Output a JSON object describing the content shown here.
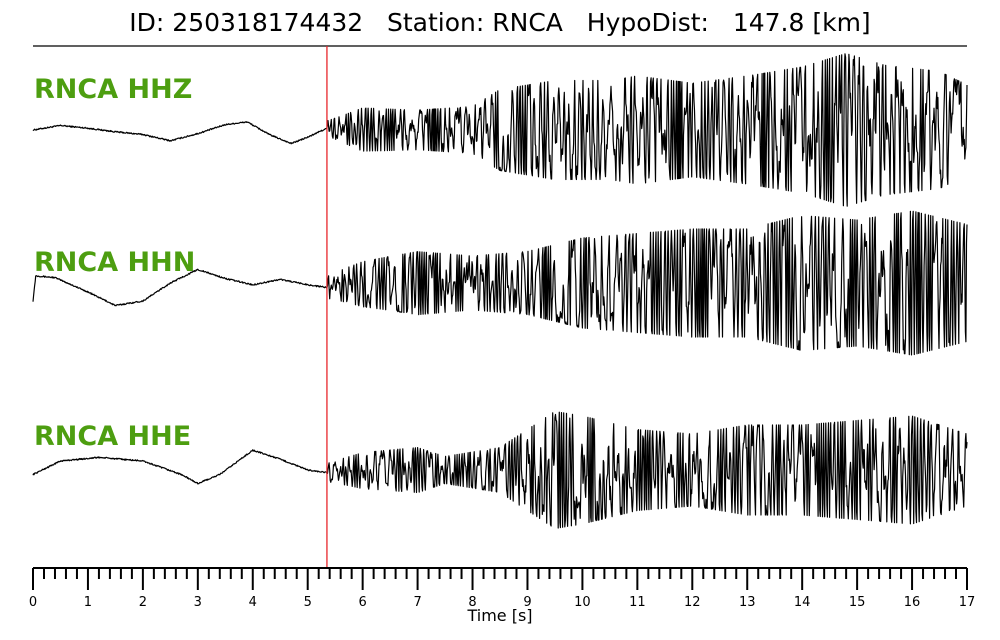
{
  "title": {
    "id_label": "ID:",
    "id_value": "250318174432",
    "station_label": "Station:",
    "station_value": "RNCA",
    "dist_label": "HypoDist:",
    "dist_value": "147.8 [km]"
  },
  "chart_data": {
    "type": "line",
    "xlabel": "Time [s]",
    "xlim": [
      0,
      17
    ],
    "xticks": [
      0,
      1,
      2,
      3,
      4,
      5,
      6,
      7,
      8,
      9,
      10,
      11,
      12,
      13,
      14,
      15,
      16,
      17
    ],
    "minor_tick_step": 0.2,
    "pick_time": 5.35,
    "pick_color": "#e8262b",
    "label_color": "#4d9e10",
    "trace_color": "#000000",
    "traces": [
      {
        "name": "RNCA HHZ",
        "end_time": 17,
        "pre_event": [
          [
            0,
            0
          ],
          [
            0.5,
            0.5
          ],
          [
            1.0,
            0.2
          ],
          [
            1.5,
            -0.2
          ],
          [
            2.0,
            -0.5
          ],
          [
            2.5,
            -1.2
          ],
          [
            3.0,
            -0.4
          ],
          [
            3.5,
            0.6
          ],
          [
            3.9,
            0.9
          ],
          [
            4.3,
            -0.5
          ],
          [
            4.7,
            -1.5
          ],
          [
            5.0,
            -0.8
          ],
          [
            5.35,
            0.2
          ]
        ],
        "coda_envelope": [
          [
            5.35,
            0.8
          ],
          [
            6.0,
            2.4
          ],
          [
            7.0,
            2.2
          ],
          [
            8.0,
            2.6
          ],
          [
            8.5,
            4.5
          ],
          [
            9.5,
            5.5
          ],
          [
            10.5,
            5.5
          ],
          [
            11.0,
            6.0
          ],
          [
            12.0,
            5.2
          ],
          [
            13.0,
            6.0
          ],
          [
            14.0,
            7.0
          ],
          [
            14.8,
            8.5
          ],
          [
            15.5,
            7.2
          ],
          [
            16.5,
            6.5
          ],
          [
            17.0,
            5.0
          ]
        ]
      },
      {
        "name": "RNCA HHN",
        "end_time": 17,
        "pre_event": [
          [
            0,
            -2.0
          ],
          [
            0.05,
            0.8
          ],
          [
            0.4,
            0.6
          ],
          [
            1.0,
            -1.0
          ],
          [
            1.5,
            -2.5
          ],
          [
            2.0,
            -2.0
          ],
          [
            2.5,
            0
          ],
          [
            3.0,
            1.5
          ],
          [
            3.5,
            0.5
          ],
          [
            4.0,
            -0.2
          ],
          [
            4.5,
            0.4
          ],
          [
            5.0,
            -0.2
          ],
          [
            5.35,
            -0.5
          ]
        ],
        "coda_envelope": [
          [
            5.35,
            1.2
          ],
          [
            6.0,
            2.5
          ],
          [
            7.0,
            3.5
          ],
          [
            8.0,
            3.0
          ],
          [
            9.0,
            3.5
          ],
          [
            10.0,
            5.0
          ],
          [
            11.0,
            5.5
          ],
          [
            12.0,
            6.0
          ],
          [
            13.0,
            6.0
          ],
          [
            14.0,
            7.5
          ],
          [
            15.0,
            7.0
          ],
          [
            16.0,
            8.0
          ],
          [
            17.0,
            6.5
          ]
        ]
      },
      {
        "name": "RNCA HHE",
        "end_time": 17,
        "pre_event": [
          [
            0,
            -0.5
          ],
          [
            0.5,
            1.0
          ],
          [
            1.2,
            1.4
          ],
          [
            2.0,
            1.0
          ],
          [
            2.7,
            -0.5
          ],
          [
            3.0,
            -1.5
          ],
          [
            3.4,
            -0.5
          ],
          [
            4.0,
            2.2
          ],
          [
            4.5,
            1.2
          ],
          [
            5.0,
            0
          ],
          [
            5.35,
            -0.3
          ]
        ],
        "coda_envelope": [
          [
            5.35,
            1.0
          ],
          [
            6.0,
            2.0
          ],
          [
            7.0,
            2.5
          ],
          [
            7.5,
            1.5
          ],
          [
            8.5,
            2.5
          ],
          [
            9.0,
            4.5
          ],
          [
            9.5,
            6.5
          ],
          [
            10.0,
            6.0
          ],
          [
            11.0,
            4.5
          ],
          [
            12.0,
            4.0
          ],
          [
            13.0,
            5.0
          ],
          [
            14.0,
            5.0
          ],
          [
            15.0,
            5.5
          ],
          [
            16.0,
            6.0
          ],
          [
            17.0,
            4.0
          ]
        ]
      }
    ]
  }
}
